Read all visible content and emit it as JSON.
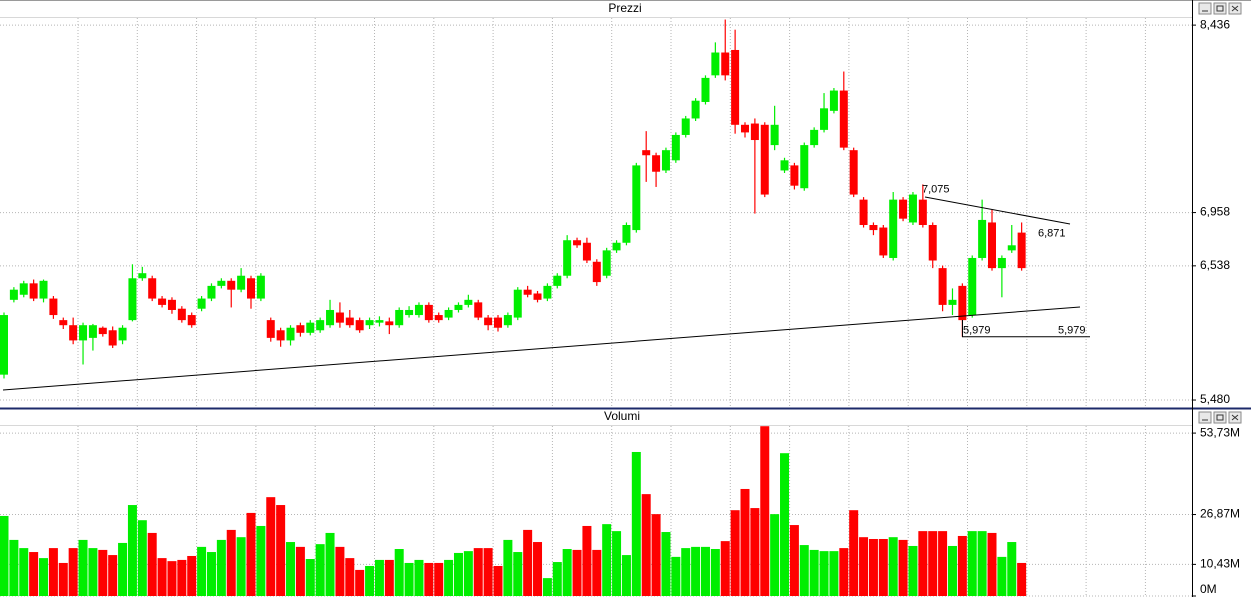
{
  "chart_data": [
    {
      "type": "candlestick",
      "title": "Prezzi",
      "up_color": "#00ee00",
      "down_color": "#ff0000",
      "grid": true,
      "ylim": [
        5.425,
        8.5
      ],
      "yticks": [
        {
          "value": 5.48,
          "label": "5,480"
        },
        {
          "value": 6.538,
          "label": "6,538"
        },
        {
          "value": 6.958,
          "label": "6,958"
        },
        {
          "value": 8.436,
          "label": "8,436"
        }
      ],
      "open": [
        5.68,
        6.27,
        6.31,
        6.4,
        6.28,
        6.28,
        6.11,
        6.07,
        5.95,
        5.97,
        6.05,
        6.03,
        5.95,
        6.11,
        6.44,
        6.44,
        6.28,
        6.27,
        6.2,
        6.15,
        6.2,
        6.28,
        6.38,
        6.42,
        6.35,
        6.44,
        6.28,
        6.11,
        6.03,
        5.95,
        6.07,
        6.01,
        6.03,
        6.07,
        6.17,
        6.13,
        6.11,
        6.07,
        6.09,
        6.1,
        6.07,
        6.15,
        6.15,
        6.23,
        6.15,
        6.13,
        6.19,
        6.23,
        6.25,
        6.13,
        6.13,
        6.07,
        6.13,
        6.35,
        6.32,
        6.28,
        6.38,
        6.46,
        6.74,
        6.72,
        6.57,
        6.46,
        6.66,
        6.72,
        6.82,
        7.45,
        7.41,
        7.29,
        7.37,
        7.57,
        7.7,
        7.83,
        8.04,
        8.22,
        8.24,
        7.65,
        7.66,
        7.65,
        7.49,
        7.29,
        7.33,
        7.15,
        7.49,
        7.61,
        7.76,
        7.92,
        7.45,
        7.06,
        6.86,
        6.84,
        6.6,
        7.06,
        6.88,
        7.06,
        6.86,
        6.52,
        6.23,
        6.38,
        6.15,
        6.6,
        6.88,
        6.52,
        6.66,
        6.8
      ],
      "high": [
        6.17,
        6.37,
        6.42,
        6.43,
        6.43,
        6.3,
        6.13,
        6.13,
        6.09,
        6.08,
        6.06,
        6.06,
        6.07,
        6.55,
        6.53,
        6.46,
        6.3,
        6.29,
        6.22,
        6.17,
        6.3,
        6.4,
        6.44,
        6.44,
        6.52,
        6.46,
        6.48,
        6.13,
        6.05,
        6.07,
        6.09,
        6.11,
        6.13,
        6.27,
        6.25,
        6.19,
        6.13,
        6.13,
        6.14,
        6.13,
        6.21,
        6.22,
        6.25,
        6.25,
        6.17,
        6.21,
        6.25,
        6.31,
        6.27,
        6.15,
        6.15,
        6.17,
        6.37,
        6.38,
        6.34,
        6.4,
        6.48,
        6.78,
        6.76,
        6.76,
        6.59,
        6.68,
        6.74,
        6.88,
        7.35,
        7.6,
        7.43,
        7.47,
        7.59,
        7.72,
        7.86,
        8.04,
        8.3,
        8.48,
        8.4,
        7.67,
        7.7,
        7.67,
        7.8,
        7.39,
        7.35,
        7.51,
        7.63,
        7.9,
        7.94,
        8.07,
        7.47,
        7.08,
        6.88,
        6.86,
        7.12,
        7.08,
        7.12,
        7.18,
        6.88,
        6.54,
        6.36,
        6.4,
        6.62,
        7.06,
        6.98,
        6.62,
        6.86,
        6.88
      ],
      "low": [
        5.65,
        6.25,
        6.29,
        6.26,
        6.25,
        6.12,
        6.04,
        5.92,
        5.76,
        5.87,
        5.98,
        5.89,
        5.92,
        6.1,
        6.42,
        6.26,
        6.21,
        6.16,
        6.09,
        6.05,
        6.18,
        6.26,
        6.36,
        6.21,
        6.33,
        6.2,
        6.26,
        5.94,
        5.9,
        5.91,
        5.98,
        5.99,
        6.01,
        6.05,
        6.05,
        6.05,
        6.01,
        6.04,
        6.06,
        6.0,
        6.05,
        6.13,
        6.13,
        6.09,
        6.09,
        6.11,
        6.17,
        6.21,
        6.11,
        6.03,
        6.02,
        6.05,
        6.11,
        6.29,
        6.25,
        6.26,
        6.36,
        6.44,
        6.68,
        6.56,
        6.38,
        6.44,
        6.64,
        6.7,
        6.8,
        7.2,
        7.16,
        7.27,
        7.35,
        7.55,
        7.68,
        7.81,
        8.02,
        8.0,
        7.58,
        7.55,
        6.95,
        7.08,
        7.45,
        7.27,
        7.14,
        7.13,
        7.47,
        7.59,
        7.74,
        7.45,
        7.08,
        6.84,
        6.78,
        6.6,
        6.58,
        6.89,
        6.86,
        6.84,
        6.52,
        6.18,
        6.15,
        5.979,
        6.13,
        6.58,
        6.5,
        6.29,
        6.64,
        6.5
      ],
      "close": [
        6.15,
        6.35,
        6.4,
        6.28,
        6.42,
        6.15,
        6.07,
        5.95,
        6.07,
        6.07,
        6.0,
        5.91,
        6.05,
        6.44,
        6.48,
        6.28,
        6.23,
        6.19,
        6.11,
        6.07,
        6.28,
        6.38,
        6.42,
        6.35,
        6.46,
        6.28,
        6.46,
        5.97,
        5.95,
        6.05,
        6.01,
        6.09,
        6.11,
        6.19,
        6.09,
        6.07,
        6.03,
        6.11,
        6.11,
        6.07,
        6.19,
        6.19,
        6.23,
        6.11,
        6.11,
        6.19,
        6.23,
        6.27,
        6.13,
        6.07,
        6.05,
        6.15,
        6.35,
        6.31,
        6.27,
        6.38,
        6.46,
        6.74,
        6.7,
        6.58,
        6.41,
        6.66,
        6.72,
        6.86,
        7.33,
        7.41,
        7.28,
        7.45,
        7.57,
        7.7,
        7.84,
        8.02,
        8.22,
        8.04,
        7.65,
        7.59,
        7.53,
        7.1,
        7.65,
        7.37,
        7.17,
        7.49,
        7.61,
        7.78,
        7.92,
        7.47,
        7.1,
        6.86,
        6.82,
        6.62,
        7.06,
        6.91,
        7.1,
        6.86,
        6.58,
        6.23,
        6.27,
        6.11,
        6.6,
        6.9,
        6.52,
        6.6,
        6.7,
        6.52
      ],
      "annotations": [
        {
          "value": 7.075,
          "label": "7,075"
        },
        {
          "value": 6.871,
          "label": "6,871"
        },
        {
          "value": 5.979,
          "label": "5,979"
        },
        {
          "value": 5.979,
          "label": "5,979"
        }
      ]
    },
    {
      "type": "bar",
      "title": "Volumi",
      "grid": true,
      "ylim": [
        0,
        56.4
      ],
      "yticks": [
        {
          "value": 0,
          "label": "0M"
        },
        {
          "value": 10.43,
          "label": "10,43M"
        },
        {
          "value": 26.87,
          "label": "26,87M"
        },
        {
          "value": 53.73,
          "label": "53,73M"
        }
      ],
      "values": [
        26.4,
        18.5,
        15.8,
        14.5,
        12.5,
        15.8,
        10.9,
        15.8,
        18.5,
        15.8,
        15.2,
        13.5,
        17.5,
        30.0,
        25.0,
        20.8,
        12.5,
        11.5,
        11.9,
        13.2,
        16.2,
        14.5,
        18.5,
        21.8,
        19.4,
        27.4,
        23.1,
        32.6,
        30.0,
        17.8,
        16.2,
        12.2,
        17.1,
        20.8,
        16.2,
        12.5,
        8.6,
        9.9,
        11.9,
        11.9,
        15.5,
        10.9,
        11.9,
        10.9,
        10.9,
        11.9,
        14.2,
        14.8,
        15.8,
        15.8,
        9.9,
        18.5,
        14.5,
        21.8,
        17.8,
        5.9,
        11.2,
        15.5,
        15.2,
        23.1,
        15.2,
        23.7,
        21.4,
        13.5,
        47.5,
        33.6,
        27.0,
        21.1,
        12.9,
        15.8,
        16.2,
        16.2,
        15.5,
        18.1,
        28.3,
        35.3,
        29.0,
        56.0,
        27.0,
        47.1,
        23.4,
        16.8,
        15.2,
        14.8,
        14.8,
        15.8,
        28.3,
        19.4,
        18.8,
        18.8,
        19.4,
        18.5,
        16.5,
        21.4,
        21.4,
        21.4,
        16.5,
        19.8,
        21.4,
        21.4,
        20.8,
        12.9,
        17.8,
        10.9
      ]
    }
  ]
}
